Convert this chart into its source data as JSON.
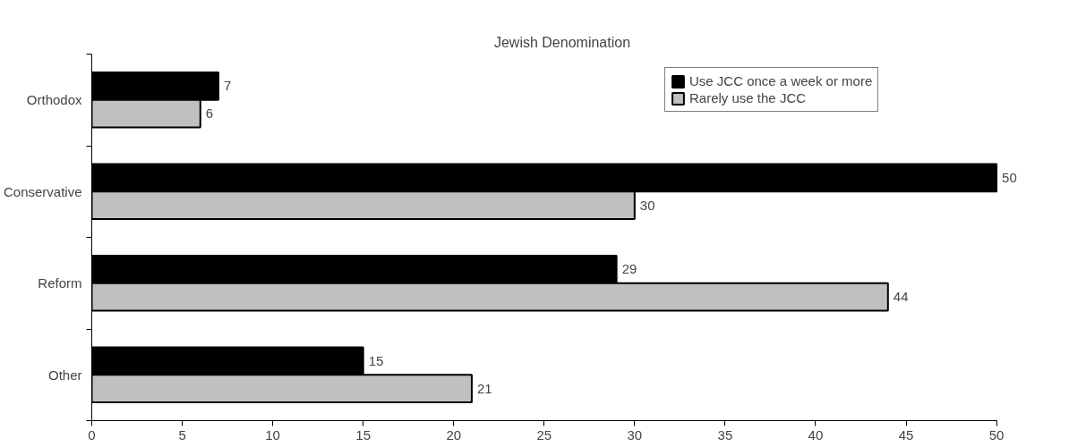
{
  "chart_data": {
    "type": "bar",
    "orientation": "horizontal",
    "title": "Jewish Denomination",
    "categories": [
      "Orthodox",
      "Conservative",
      "Reform",
      "Other"
    ],
    "series": [
      {
        "name": "Use JCC once a week or more",
        "color": "#000000",
        "values": [
          7,
          50,
          29,
          15
        ]
      },
      {
        "name": "Rarely use the JCC",
        "color": "#c0c0c0",
        "values": [
          6,
          30,
          44,
          21
        ]
      }
    ],
    "xlim": [
      0,
      50
    ],
    "xticks": [
      0,
      5,
      10,
      15,
      20,
      25,
      30,
      35,
      40,
      45,
      50
    ],
    "grid": false,
    "legend": "top right",
    "data_labels": true
  }
}
